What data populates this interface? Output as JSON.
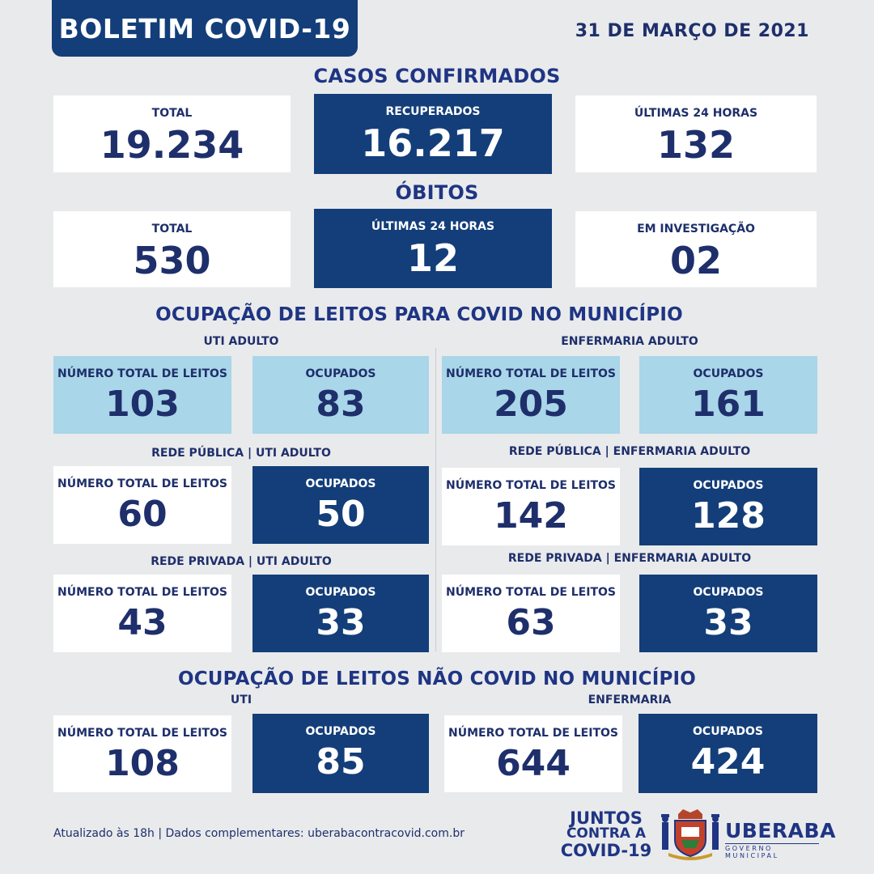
{
  "header": {
    "title": "BOLETIM COVID-19",
    "date": "31 DE MARÇO DE 2021"
  },
  "casos": {
    "title": "CASOS CONFIRMADOS",
    "total_label": "TOTAL",
    "total_value": "19.234",
    "recuperados_label": "RECUPERADOS",
    "recuperados_value": "16.217",
    "ultimas_label": "ÚLTIMAS 24 HORAS",
    "ultimas_value": "132"
  },
  "obitos": {
    "title": "ÓBITOS",
    "total_label": "TOTAL",
    "total_value": "530",
    "ultimas_label": "ÚLTIMAS 24 HORAS",
    "ultimas_value": "12",
    "investigacao_label": "EM INVESTIGAÇÃO",
    "investigacao_value": "02"
  },
  "covid_leitos": {
    "title": "OCUPAÇÃO DE LEITOS PARA COVID NO MUNICÍPIO",
    "uti_label": "UTI ADULTO",
    "enf_label": "ENFERMARIA ADULTO",
    "total_label": "NÚMERO TOTAL DE LEITOS",
    "ocupados_label": "OCUPADOS",
    "uti_total": "103",
    "uti_ocupados": "83",
    "enf_total": "205",
    "enf_ocupados": "161",
    "pub_uti_label": "REDE PÚBLICA | UTI ADULTO",
    "pub_uti_total": "60",
    "pub_uti_ocupados": "50",
    "pub_enf_label": "REDE PÚBLICA | ENFERMARIA ADULTO",
    "pub_enf_total": "142",
    "pub_enf_ocupados": "128",
    "priv_uti_label": "REDE PRIVADA | UTI ADULTO",
    "priv_uti_total": "43",
    "priv_uti_ocupados": "33",
    "priv_enf_label": "REDE PRIVADA | ENFERMARIA ADULTO",
    "priv_enf_total": "63",
    "priv_enf_ocupados": "33"
  },
  "nao_covid": {
    "title": "OCUPAÇÃO DE LEITOS NÃO COVID NO MUNICÍPIO",
    "uti_label": "UTI",
    "enf_label": "ENFERMARIA",
    "uti_total": "108",
    "uti_ocupados": "85",
    "enf_total": "644",
    "enf_ocupados": "424"
  },
  "footer": {
    "text": "Atualizado às 18h | Dados complementares: uberabacontracovid.com.br",
    "juntos_1": "JUNTOS",
    "juntos_2": "CONTRA A",
    "juntos_3": "COVID-19",
    "city": "UBERABA",
    "gov": "GOVERNO MUNICIPAL"
  },
  "colors": {
    "dark_blue": "#133e79",
    "light_blue": "#a9d6e8",
    "text_blue": "#1e2f6b",
    "background": "#e9eaec"
  }
}
